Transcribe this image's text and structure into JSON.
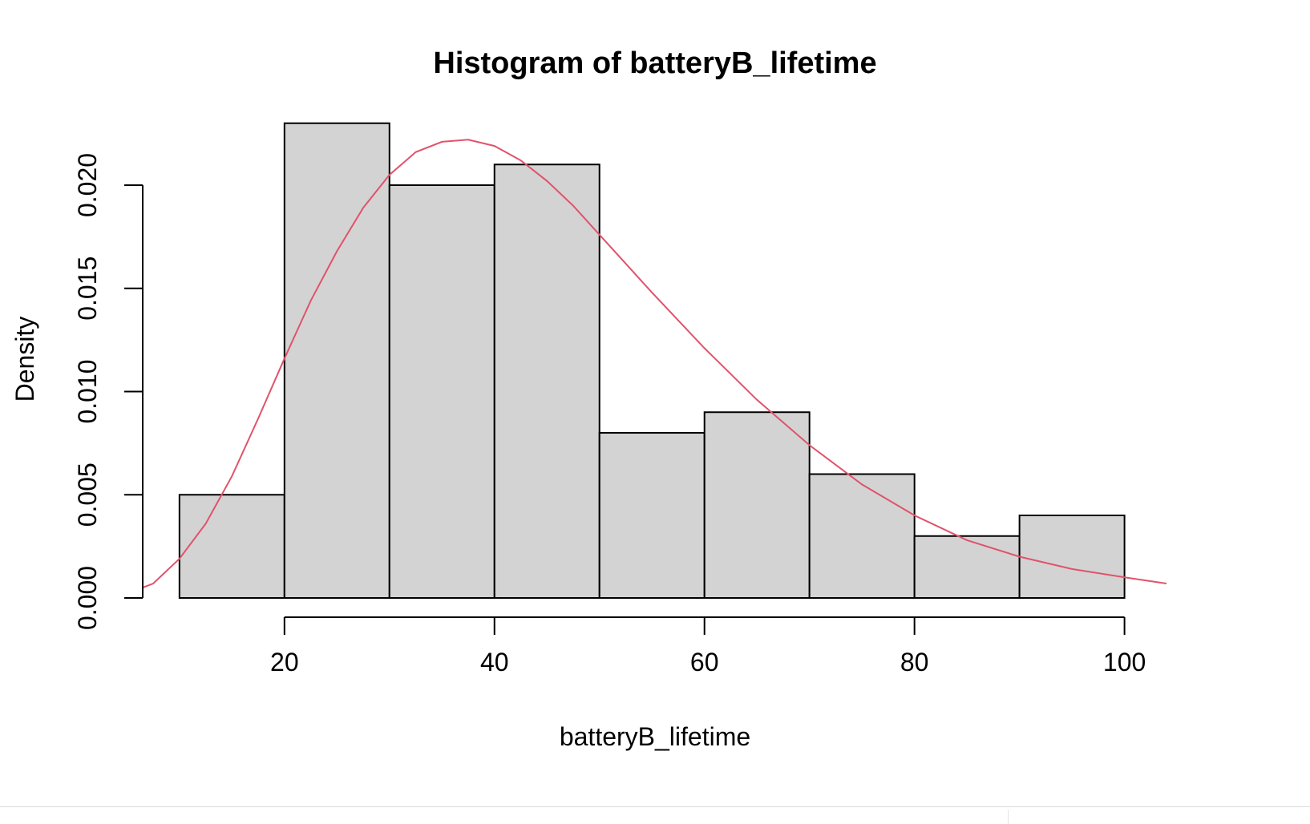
{
  "chart_data": {
    "type": "bar",
    "title": "Histogram of batteryB_lifetime",
    "xlabel": "batteryB_lifetime",
    "ylabel": "Density",
    "bins": [
      {
        "from": 10,
        "to": 20,
        "density": 0.005
      },
      {
        "from": 20,
        "to": 30,
        "density": 0.023
      },
      {
        "from": 30,
        "to": 40,
        "density": 0.02
      },
      {
        "from": 40,
        "to": 50,
        "density": 0.021
      },
      {
        "from": 50,
        "to": 60,
        "density": 0.008
      },
      {
        "from": 60,
        "to": 70,
        "density": 0.009
      },
      {
        "from": 70,
        "to": 80,
        "density": 0.006
      },
      {
        "from": 80,
        "to": 90,
        "density": 0.003
      },
      {
        "from": 90,
        "to": 100,
        "density": 0.004
      }
    ],
    "x_ticks": [
      20,
      40,
      60,
      80,
      100
    ],
    "y_ticks": [
      "0.000",
      "0.005",
      "0.010",
      "0.015",
      "0.020"
    ],
    "xlim": [
      6.5,
      104
    ],
    "ylim": [
      0,
      0.0233
    ],
    "density_curve": {
      "color": "#e0536b",
      "x": [
        6.5,
        7.5,
        10,
        12.5,
        15,
        17.5,
        20,
        22.5,
        25,
        27.5,
        30,
        32.5,
        35,
        37.5,
        40,
        42.5,
        45,
        47.5,
        50,
        55,
        60,
        65,
        70,
        75,
        80,
        85,
        90,
        95,
        100,
        104
      ],
      "y": [
        0.0005,
        0.0007,
        0.0019,
        0.0036,
        0.0059,
        0.0087,
        0.0116,
        0.0144,
        0.0168,
        0.0189,
        0.0205,
        0.0216,
        0.0221,
        0.0222,
        0.0219,
        0.0212,
        0.0202,
        0.019,
        0.0176,
        0.0148,
        0.0121,
        0.0096,
        0.0074,
        0.0055,
        0.004,
        0.0028,
        0.002,
        0.0014,
        0.001,
        0.0007
      ]
    },
    "bar_fill": "#d3d3d3",
    "grid": false,
    "legend": "none"
  }
}
